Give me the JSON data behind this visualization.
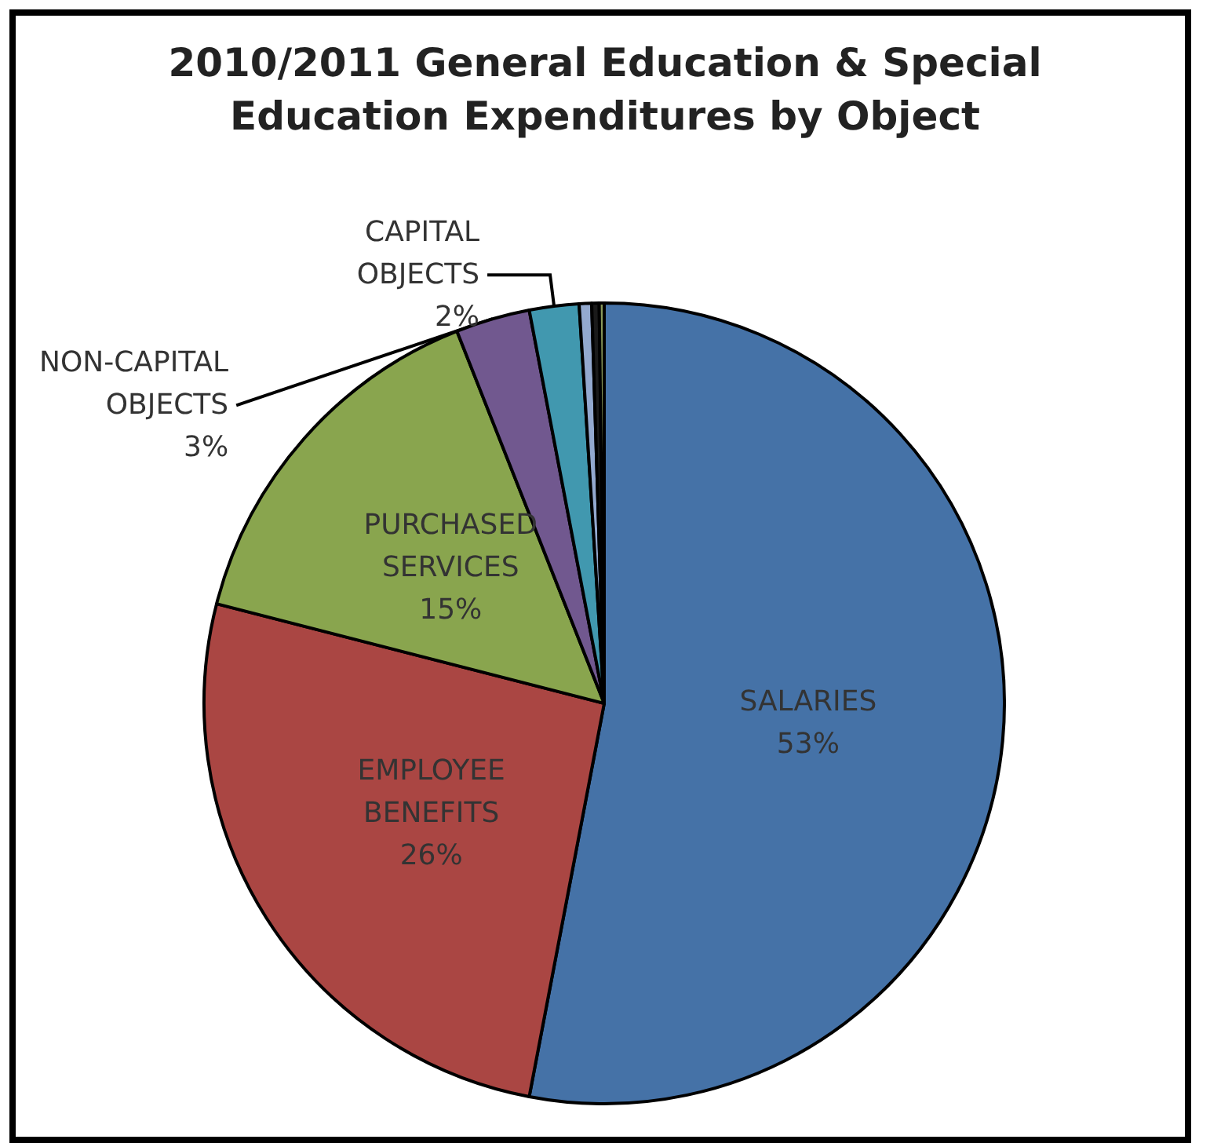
{
  "chart_data": {
    "type": "pie",
    "title": "2010/2011 General Education & Special\nEducation Expenditures by Object",
    "categories": [
      "SALARIES",
      "EMPLOYEE BENEFITS",
      "PURCHASED SERVICES",
      "NON-CAPITAL OBJECTS",
      "CAPITAL OBJECTS",
      null,
      null,
      null
    ],
    "values": [
      53,
      26,
      15,
      3,
      2,
      0.5,
      0.3,
      0.2
    ],
    "value_labels": [
      "53%",
      "26%",
      "15%",
      "3%",
      "2%",
      null,
      null,
      null
    ],
    "colors": [
      "#4572a7",
      "#aa4643",
      "#89a54e",
      "#71588f",
      "#4198af",
      "#93a9cf",
      "#1a1a1a",
      "#8a9a5b"
    ],
    "legend": false
  }
}
